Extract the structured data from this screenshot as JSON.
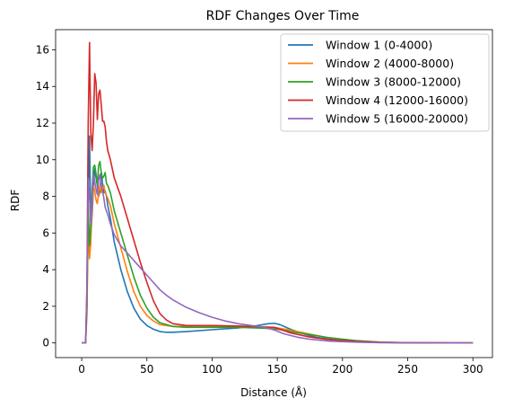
{
  "chart_data": {
    "type": "line",
    "title": "RDF Changes Over Time",
    "xlabel": "Distance (Å)",
    "ylabel": "RDF",
    "xlim": [
      -20,
      315
    ],
    "ylim": [
      -0.8,
      17.1
    ],
    "xticks": [
      0,
      50,
      100,
      150,
      200,
      250,
      300
    ],
    "yticks": [
      0,
      2,
      4,
      6,
      8,
      10,
      12,
      14,
      16
    ],
    "grid": false,
    "legend_position": "top-right",
    "series": [
      {
        "name": "Window 1 (0-4000)",
        "color": "#1f77b4",
        "points": [
          [
            0,
            0
          ],
          [
            3,
            0
          ],
          [
            4,
            2
          ],
          [
            5,
            8
          ],
          [
            6,
            11.3
          ],
          [
            7,
            6
          ],
          [
            8,
            7
          ],
          [
            9,
            8.5
          ],
          [
            10,
            9.5
          ],
          [
            11,
            9
          ],
          [
            12,
            8.6
          ],
          [
            13,
            8
          ],
          [
            14,
            8.3
          ],
          [
            15,
            9.3
          ],
          [
            16,
            8.7
          ],
          [
            17,
            8.2
          ],
          [
            18,
            8.3
          ],
          [
            19,
            8.0
          ],
          [
            20,
            7.5
          ],
          [
            22,
            6.8
          ],
          [
            25,
            5.5
          ],
          [
            30,
            4.0
          ],
          [
            35,
            2.8
          ],
          [
            40,
            1.9
          ],
          [
            45,
            1.3
          ],
          [
            50,
            0.95
          ],
          [
            55,
            0.75
          ],
          [
            60,
            0.62
          ],
          [
            65,
            0.58
          ],
          [
            70,
            0.58
          ],
          [
            80,
            0.62
          ],
          [
            100,
            0.72
          ],
          [
            120,
            0.82
          ],
          [
            135,
            0.95
          ],
          [
            143,
            1.05
          ],
          [
            148,
            1.07
          ],
          [
            152,
            1.0
          ],
          [
            160,
            0.75
          ],
          [
            170,
            0.5
          ],
          [
            180,
            0.3
          ],
          [
            200,
            0.12
          ],
          [
            220,
            0.04
          ],
          [
            240,
            0.01
          ],
          [
            300,
            0
          ]
        ]
      },
      {
        "name": "Window 2 (4000-8000)",
        "color": "#ff7f0e",
        "points": [
          [
            0,
            0
          ],
          [
            3,
            0
          ],
          [
            4,
            1.5
          ],
          [
            5,
            6.5
          ],
          [
            6,
            4.6
          ],
          [
            7,
            5.5
          ],
          [
            8,
            7.5
          ],
          [
            9,
            8.6
          ],
          [
            10,
            8.3
          ],
          [
            11,
            7.8
          ],
          [
            12,
            7.6
          ],
          [
            13,
            8.2
          ],
          [
            14,
            8.6
          ],
          [
            15,
            8.2
          ],
          [
            16,
            8.4
          ],
          [
            17,
            8.6
          ],
          [
            18,
            8.2
          ],
          [
            20,
            7.9
          ],
          [
            22,
            7.5
          ],
          [
            25,
            6.5
          ],
          [
            30,
            5.2
          ],
          [
            35,
            3.9
          ],
          [
            40,
            2.8
          ],
          [
            45,
            2.0
          ],
          [
            50,
            1.5
          ],
          [
            55,
            1.2
          ],
          [
            60,
            1.0
          ],
          [
            70,
            0.9
          ],
          [
            80,
            0.9
          ],
          [
            100,
            0.92
          ],
          [
            120,
            0.92
          ],
          [
            140,
            0.88
          ],
          [
            150,
            0.82
          ],
          [
            160,
            0.7
          ],
          [
            175,
            0.48
          ],
          [
            190,
            0.28
          ],
          [
            210,
            0.12
          ],
          [
            230,
            0.04
          ],
          [
            250,
            0.01
          ],
          [
            300,
            0
          ]
        ]
      },
      {
        "name": "Window 3 (8000-12000)",
        "color": "#2ca02c",
        "points": [
          [
            0,
            0
          ],
          [
            3,
            0
          ],
          [
            4,
            2
          ],
          [
            5,
            7.5
          ],
          [
            6,
            5.3
          ],
          [
            7,
            6.5
          ],
          [
            8,
            8.4
          ],
          [
            9,
            9.6
          ],
          [
            10,
            9.7
          ],
          [
            11,
            9.2
          ],
          [
            12,
            8.6
          ],
          [
            13,
            9.7
          ],
          [
            14,
            9.9
          ],
          [
            15,
            9.3
          ],
          [
            16,
            9.0
          ],
          [
            17,
            9.1
          ],
          [
            18,
            9.3
          ],
          [
            19,
            8.7
          ],
          [
            20,
            8.6
          ],
          [
            22,
            8.2
          ],
          [
            25,
            7.2
          ],
          [
            30,
            6.0
          ],
          [
            35,
            4.8
          ],
          [
            40,
            3.6
          ],
          [
            45,
            2.6
          ],
          [
            50,
            1.9
          ],
          [
            55,
            1.4
          ],
          [
            60,
            1.1
          ],
          [
            70,
            0.9
          ],
          [
            80,
            0.85
          ],
          [
            100,
            0.85
          ],
          [
            120,
            0.85
          ],
          [
            140,
            0.8
          ],
          [
            150,
            0.75
          ],
          [
            160,
            0.62
          ],
          [
            175,
            0.45
          ],
          [
            190,
            0.28
          ],
          [
            210,
            0.13
          ],
          [
            230,
            0.04
          ],
          [
            250,
            0.01
          ],
          [
            300,
            0
          ]
        ]
      },
      {
        "name": "Window 4 (12000-16000)",
        "color": "#d62728",
        "points": [
          [
            0,
            0
          ],
          [
            3,
            0
          ],
          [
            4,
            3
          ],
          [
            5,
            12
          ],
          [
            6,
            16.4
          ],
          [
            7,
            11.5
          ],
          [
            8,
            10.5
          ],
          [
            9,
            12
          ],
          [
            10,
            14.7
          ],
          [
            11,
            14.2
          ],
          [
            12,
            12.2
          ],
          [
            13,
            13.6
          ],
          [
            14,
            13.8
          ],
          [
            15,
            13.0
          ],
          [
            16,
            12.1
          ],
          [
            17,
            12.1
          ],
          [
            18,
            11.8
          ],
          [
            19,
            11.0
          ],
          [
            20,
            10.5
          ],
          [
            22,
            10
          ],
          [
            25,
            9.0
          ],
          [
            30,
            8.0
          ],
          [
            35,
            6.8
          ],
          [
            40,
            5.6
          ],
          [
            45,
            4.4
          ],
          [
            50,
            3.3
          ],
          [
            55,
            2.3
          ],
          [
            60,
            1.6
          ],
          [
            65,
            1.25
          ],
          [
            70,
            1.05
          ],
          [
            80,
            0.95
          ],
          [
            100,
            0.95
          ],
          [
            120,
            0.92
          ],
          [
            135,
            0.88
          ],
          [
            148,
            0.85
          ],
          [
            152,
            0.75
          ],
          [
            160,
            0.55
          ],
          [
            175,
            0.32
          ],
          [
            190,
            0.18
          ],
          [
            210,
            0.08
          ],
          [
            230,
            0.03
          ],
          [
            250,
            0.01
          ],
          [
            300,
            0
          ]
        ]
      },
      {
        "name": "Window 5 (16000-20000)",
        "color": "#9467bd",
        "points": [
          [
            0,
            0
          ],
          [
            3,
            0
          ],
          [
            4,
            3
          ],
          [
            5,
            9
          ],
          [
            6,
            8
          ],
          [
            7,
            6.5
          ],
          [
            8,
            7.8
          ],
          [
            9,
            9.2
          ],
          [
            10,
            8.8
          ],
          [
            11,
            8.4
          ],
          [
            12,
            8.1
          ],
          [
            13,
            8.9
          ],
          [
            14,
            9.2
          ],
          [
            15,
            8.6
          ],
          [
            16,
            8.3
          ],
          [
            17,
            7.9
          ],
          [
            18,
            7.4
          ],
          [
            20,
            7.0
          ],
          [
            22,
            6.5
          ],
          [
            25,
            5.9
          ],
          [
            30,
            5.3
          ],
          [
            35,
            4.9
          ],
          [
            40,
            4.5
          ],
          [
            45,
            4.1
          ],
          [
            50,
            3.7
          ],
          [
            55,
            3.3
          ],
          [
            60,
            2.9
          ],
          [
            65,
            2.6
          ],
          [
            70,
            2.35
          ],
          [
            80,
            1.95
          ],
          [
            90,
            1.65
          ],
          [
            100,
            1.4
          ],
          [
            110,
            1.2
          ],
          [
            120,
            1.05
          ],
          [
            130,
            0.95
          ],
          [
            140,
            0.85
          ],
          [
            148,
            0.7
          ],
          [
            155,
            0.5
          ],
          [
            165,
            0.32
          ],
          [
            175,
            0.2
          ],
          [
            190,
            0.1
          ],
          [
            210,
            0.04
          ],
          [
            230,
            0.01
          ],
          [
            300,
            0
          ]
        ]
      }
    ]
  }
}
